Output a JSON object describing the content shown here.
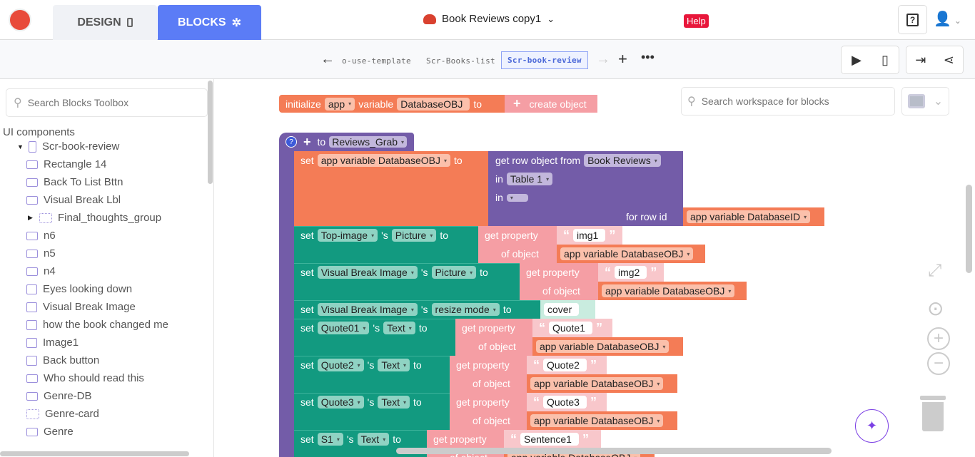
{
  "header": {
    "design_tab": "DESIGN",
    "blocks_tab": "BLOCKS",
    "project_title": "Book Reviews copy1",
    "help_badge": "Help",
    "accent": "#5b7cf6",
    "help_color": "#e8173b"
  },
  "screens": {
    "items": [
      "o-use-template",
      "Scr-Books-list",
      "Scr-book-review"
    ],
    "active": "Scr-book-review"
  },
  "sidebar": {
    "search_placeholder": "Search Blocks Toolbox",
    "section": "UI components",
    "items": [
      "Scr-book-review",
      "Rectangle 14",
      "Back To List Bttn",
      "Visual Break Lbl",
      "Final_thoughts_group",
      "n6",
      "n5",
      "n4",
      "Eyes looking down",
      "Visual Break Image",
      "how the book changed me",
      "Image1",
      "Back button",
      "Who should read this",
      "Genre-DB",
      "Genre-card",
      "Genre"
    ]
  },
  "workspace": {
    "search_placeholder": "Search workspace for blocks"
  },
  "blocks": {
    "init": {
      "initialize": "initialize",
      "scope": "app",
      "variable": "variable",
      "name": "DatabaseOBJ",
      "to": "to",
      "create": "create object"
    },
    "func": {
      "to": "to",
      "name": "Reviews_Grab"
    },
    "set_var": {
      "set": "set",
      "var": "app variable DatabaseOBJ",
      "to": "to",
      "get_row": "get row object from",
      "db": "Book Reviews",
      "in": "in",
      "table": "Table 1",
      "in2": "in",
      "for_row_id": "for row id",
      "row_var": "app variable DatabaseID"
    },
    "common": {
      "set": "set",
      "s": "'s",
      "to": "to",
      "get_property": "get property",
      "of_object": "of object",
      "obj_var": "app variable DatabaseOBJ"
    },
    "rows": [
      {
        "comp": "Top-image",
        "prop": "Picture",
        "key": "img1"
      },
      {
        "comp": "Visual Break Image",
        "prop": "Picture",
        "key": "img2"
      },
      {
        "comp": "Visual Break Image",
        "prop": "resize mode",
        "value": "cover"
      },
      {
        "comp": "Quote01",
        "prop": "Text",
        "key": "Quote1"
      },
      {
        "comp": "Quote2",
        "prop": "Text",
        "key": "Quote2"
      },
      {
        "comp": "Quote3",
        "prop": "Text",
        "key": "Quote3"
      },
      {
        "comp": "S1",
        "prop": "Text",
        "key": "Sentence1"
      }
    ]
  }
}
